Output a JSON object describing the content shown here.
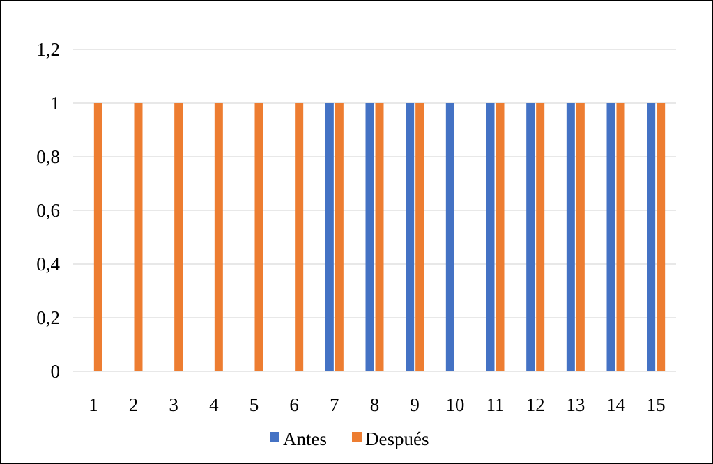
{
  "chart_data": {
    "type": "bar",
    "categories": [
      "1",
      "2",
      "3",
      "4",
      "5",
      "6",
      "7",
      "8",
      "9",
      "10",
      "11",
      "12",
      "13",
      "14",
      "15"
    ],
    "series": [
      {
        "name": "Antes",
        "color": "#4472c4",
        "values": [
          0,
          0,
          0,
          0,
          0,
          0,
          1,
          1,
          1,
          1,
          1,
          1,
          1,
          1,
          1
        ]
      },
      {
        "name": "Después",
        "color": "#ed7d31",
        "values": [
          1,
          1,
          1,
          1,
          1,
          1,
          1,
          1,
          1,
          0,
          1,
          1,
          1,
          1,
          1
        ]
      }
    ],
    "ylim": [
      0,
      1.2
    ],
    "yticks": [
      "0",
      "0,2",
      "0,4",
      "0,6",
      "0,8",
      "1",
      "1,2"
    ],
    "grid": true,
    "legend_position": "bottom",
    "title": "",
    "xlabel": "",
    "ylabel": ""
  }
}
